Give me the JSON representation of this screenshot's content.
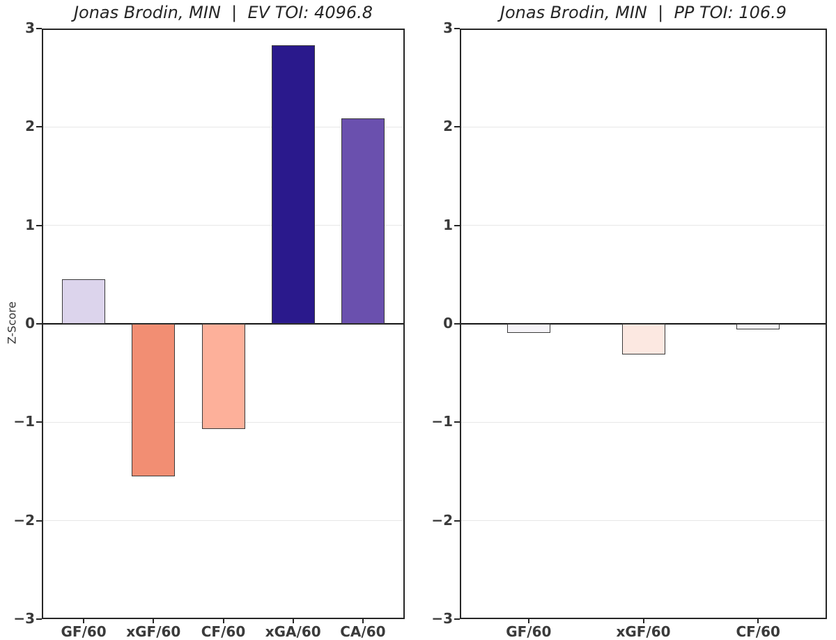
{
  "figure": {
    "background": "#ffffff",
    "text_color": "#262626",
    "grid_color": "#e7e7e7",
    "zero_line_color": "#141414",
    "spine_color": "#262626",
    "bar_edge_color": "#3a3a3a"
  },
  "y_axis": {
    "label": "Z-Score",
    "ticks": [
      3,
      2,
      1,
      0,
      -1,
      -2,
      -3
    ],
    "tick_labels": [
      "3",
      "2",
      "1",
      "0",
      "−1",
      "−2",
      "−3"
    ],
    "min": -3,
    "max": 3
  },
  "chart_data": [
    {
      "type": "bar",
      "title": "Jonas Brodin, MIN  |  EV TOI: 4096.8",
      "categories": [
        "GF/60",
        "xGF/60",
        "CF/60",
        "xGA/60",
        "CA/60"
      ],
      "values": [
        0.45,
        -1.55,
        -1.07,
        2.83,
        2.09
      ],
      "bar_colors": [
        "#dcd4ec",
        "#f28e73",
        "#fdb09a",
        "#2a198c",
        "#6a50ae"
      ],
      "ylabel": "Z-Score",
      "xlabel": "",
      "ylim": [
        -3,
        3
      ],
      "yticks": [
        3,
        2,
        1,
        0,
        -1,
        -2,
        -3
      ],
      "ytick_labels": [
        "3",
        "2",
        "1",
        "0",
        "−1",
        "−2",
        "−3"
      ],
      "grid": true,
      "legend": false
    },
    {
      "type": "bar",
      "title": "Jonas Brodin, MIN  |  PP TOI: 106.9",
      "categories": [
        "GF/60",
        "xGF/60",
        "CF/60"
      ],
      "values": [
        -0.09,
        -0.31,
        -0.06
      ],
      "bar_colors": [
        "#f6f4f8",
        "#fce8e1",
        "#f8f6f9"
      ],
      "ylabel": "",
      "xlabel": "",
      "ylim": [
        -3,
        3
      ],
      "yticks": [
        3,
        2,
        1,
        0,
        -1,
        -2,
        -3
      ],
      "ytick_labels": [
        "3",
        "2",
        "1",
        "0",
        "−1",
        "−2",
        "−3"
      ],
      "grid": true,
      "legend": false
    }
  ]
}
